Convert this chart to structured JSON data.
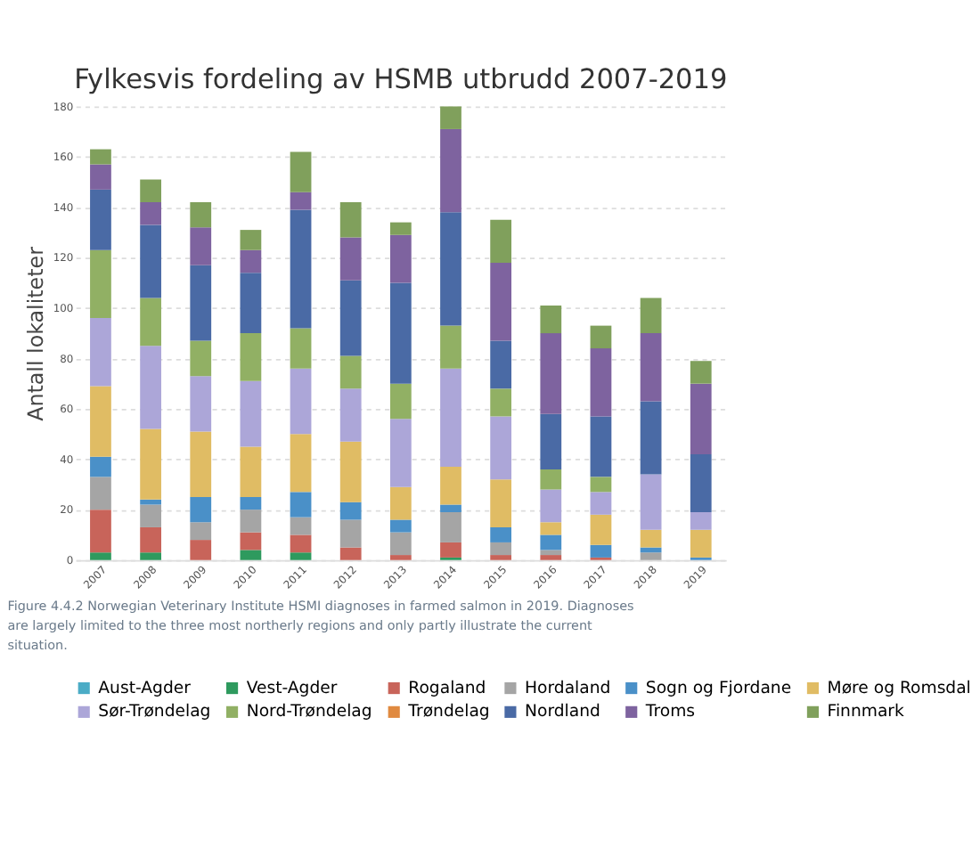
{
  "chart_data": {
    "type": "bar",
    "stacked": true,
    "title": "Fylkesvis fordeling av HSMB utbrudd 2007-2019",
    "ylabel": "Antall lokaliteter",
    "categories": [
      "2007",
      "2008",
      "2009",
      "2010",
      "2011",
      "2012",
      "2013",
      "2014",
      "2015",
      "2016",
      "2017",
      "2018",
      "2019"
    ],
    "series": [
      {
        "name": "Aust-Agder",
        "color": "#4bacc6",
        "values": [
          0,
          0,
          0,
          0,
          0,
          0,
          0,
          0,
          0,
          0,
          0,
          0,
          0
        ]
      },
      {
        "name": "Vest-Agder",
        "color": "#2e9a5e",
        "values": [
          3,
          3,
          0,
          4,
          3,
          0,
          0,
          1,
          0,
          0,
          0,
          0,
          0
        ]
      },
      {
        "name": "Rogaland",
        "color": "#c8645a",
        "values": [
          17,
          10,
          8,
          7,
          7,
          5,
          2,
          6,
          2,
          2,
          1,
          0,
          0
        ]
      },
      {
        "name": "Hordaland",
        "color": "#a5a5a5",
        "values": [
          13,
          9,
          7,
          9,
          7,
          11,
          9,
          12,
          5,
          2,
          0,
          3,
          0
        ]
      },
      {
        "name": "Sogn og Fjordane",
        "color": "#4a90c8",
        "values": [
          8,
          2,
          10,
          5,
          10,
          7,
          5,
          3,
          6,
          6,
          5,
          2,
          1
        ]
      },
      {
        "name": "Møre og Romsdal",
        "color": "#e0bc64",
        "values": [
          28,
          28,
          26,
          20,
          23,
          24,
          13,
          15,
          19,
          5,
          12,
          7,
          11
        ]
      },
      {
        "name": "Sør-Trøndelag",
        "color": "#aca6d8",
        "values": [
          27,
          33,
          22,
          26,
          26,
          21,
          27,
          39,
          25,
          13,
          9,
          22,
          7
        ]
      },
      {
        "name": "Nord-Trøndelag",
        "color": "#91b064",
        "values": [
          27,
          19,
          14,
          19,
          16,
          13,
          14,
          17,
          11,
          8,
          6,
          0,
          0
        ]
      },
      {
        "name": "Trøndelag",
        "color": "#e08a40",
        "values": [
          0,
          0,
          0,
          0,
          0,
          0,
          0,
          0,
          0,
          0,
          0,
          0,
          0
        ]
      },
      {
        "name": "Nordland",
        "color": "#4a6aa5",
        "values": [
          24,
          29,
          30,
          24,
          47,
          30,
          40,
          45,
          19,
          22,
          24,
          29,
          23
        ]
      },
      {
        "name": "Troms",
        "color": "#7e639f",
        "values": [
          10,
          9,
          15,
          9,
          7,
          17,
          19,
          33,
          31,
          32,
          27,
          27,
          28
        ]
      },
      {
        "name": "Finnmark",
        "color": "#80a05c",
        "values": [
          6,
          9,
          10,
          8,
          16,
          14,
          5,
          9,
          17,
          11,
          9,
          14,
          9
        ]
      }
    ],
    "ylim": [
      0,
      180
    ],
    "yticks": [
      0,
      20,
      40,
      60,
      80,
      100,
      120,
      140,
      160,
      180
    ],
    "grid": "y",
    "legend": "bottom",
    "annotations": [
      "Figure 4.4.2 Norwegian Veterinary Institute HSMI diagnoses in farmed salmon in 2019. Diagnoses are largely limited to the three most northerly regions and only partly illustrate the current situation."
    ]
  }
}
